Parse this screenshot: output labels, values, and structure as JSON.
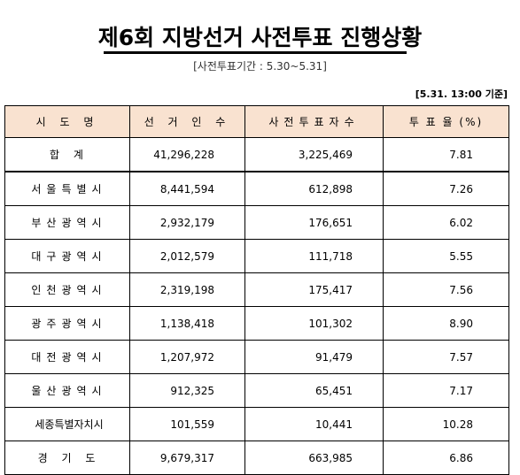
{
  "document": {
    "title": "제6회 지방선거 사전투표 진행상황",
    "subtitle": "[사전투표기간 : 5.30~5.31]",
    "timestamp": "[5.31. 13:00 기준]"
  },
  "table": {
    "headers": [
      "시 도 명",
      "선 거 인 수",
      "사전투표자수",
      "투 표 율 (%)"
    ],
    "rows": [
      [
        "합 계",
        "41,296,228",
        "3,225,469",
        "7.81"
      ],
      [
        "서울특별시",
        "8,441,594",
        "612,898",
        "7.26"
      ],
      [
        "부산광역시",
        "2,932,179",
        "176,651",
        "6.02"
      ],
      [
        "대구광역시",
        "2,012,579",
        "111,718",
        "5.55"
      ],
      [
        "인천광역시",
        "2,319,198",
        "175,417",
        "7.56"
      ],
      [
        "광주광역시",
        "1,138,418",
        "101,302",
        "8.90"
      ],
      [
        "대전광역시",
        "1,207,972",
        "91,479",
        "7.57"
      ],
      [
        "울산광역시",
        "912,325",
        "65,451",
        "7.17"
      ],
      [
        "세종특별자치시",
        "101,559",
        "10,441",
        "10.28"
      ],
      [
        "경 기 도",
        "9,679,317",
        "663,985",
        "6.86"
      ]
    ]
  }
}
